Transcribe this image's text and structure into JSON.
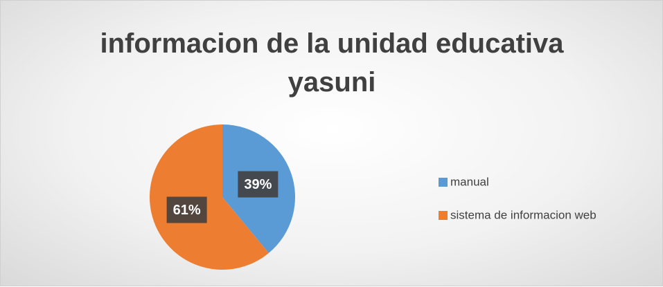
{
  "chart_data": {
    "type": "pie",
    "title": "informacion de la unidad educativa yasuni",
    "categories": [
      "manual",
      "sistema de informacion web"
    ],
    "values": [
      39,
      61
    ],
    "value_labels": [
      "39%",
      "61%"
    ],
    "colors": [
      "#5b9bd5",
      "#ed7d31"
    ],
    "legend": "right"
  }
}
